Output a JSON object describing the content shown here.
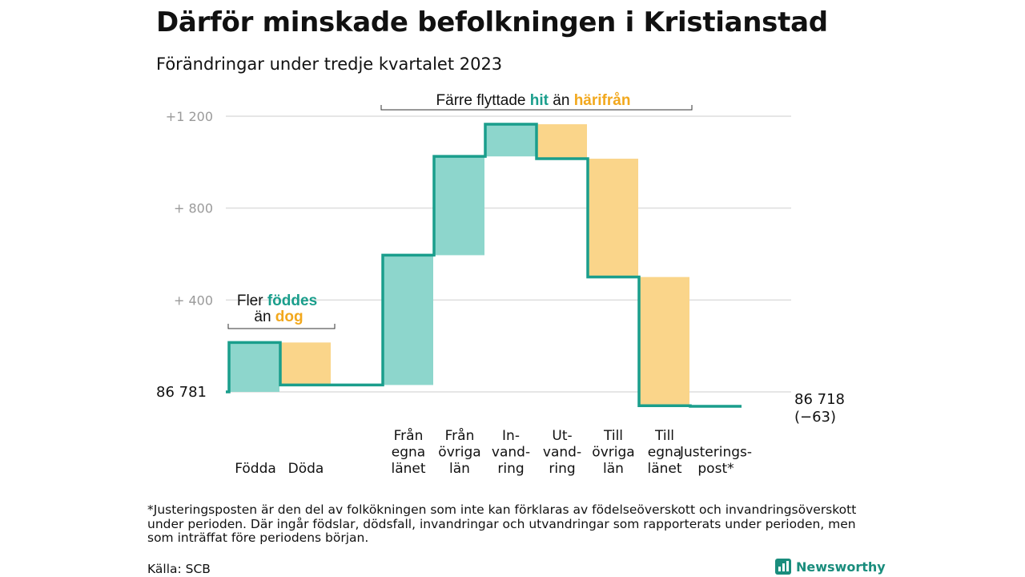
{
  "title": "Därför minskade befolkningen i Kristianstad",
  "subtitle": "Förändringar under tredje kvartalet 2023",
  "colors": {
    "increase": "#8dd6cc",
    "decrease": "#fad58a",
    "line": "#1a9e8c",
    "hit": "#1a9e8c",
    "harifran": "#f2a81d",
    "grid": "#dddddd"
  },
  "annotations": {
    "births": {
      "line1_prefix": "Fler ",
      "line1_hl": "föddes",
      "line2_prefix": "än ",
      "line2_hl": "dog"
    },
    "moves": {
      "prefix": "Färre flyttade ",
      "hl1": "hit",
      "mid": " än ",
      "hl2": "härifrån"
    }
  },
  "chart_data": {
    "type": "waterfall",
    "title": "Därför minskade befolkningen i Kristianstad",
    "subtitle": "Förändringar under tredje kvartalet 2023",
    "start_value": 86781,
    "start_label": "86  781",
    "end_value": 86718,
    "end_label_line1": "86 718",
    "end_label_line2": "(−63)",
    "ylim": [
      0,
      1200
    ],
    "yticks": [
      {
        "value": 400,
        "label": "+  400"
      },
      {
        "value": 800,
        "label": "+  800"
      },
      {
        "value": 1200,
        "label": "+1  200"
      }
    ],
    "categories": [
      {
        "lines": [
          "Födda"
        ],
        "delta": 215
      },
      {
        "lines": [
          "Döda"
        ],
        "delta": -185
      },
      {
        "lines": [],
        "delta": 0
      },
      {
        "lines": [
          "Från",
          "egna",
          "länet"
        ],
        "delta": 565
      },
      {
        "lines": [
          "Från",
          "övriga",
          "län"
        ],
        "delta": 430
      },
      {
        "lines": [
          "In-",
          "vand-",
          "ring"
        ],
        "delta": 140
      },
      {
        "lines": [
          "Ut-",
          "vand-",
          "ring"
        ],
        "delta": -150
      },
      {
        "lines": [
          "Till",
          "övriga",
          "län"
        ],
        "delta": -515
      },
      {
        "lines": [
          "Till",
          "egna",
          "länet"
        ],
        "delta": -560
      },
      {
        "lines": [
          "Justerings-",
          "post*"
        ],
        "delta": -3
      }
    ]
  },
  "footnote": "*Justeringsposten är den del av folkökningen som inte kan förklaras av födelseöverskott och invandringsöverskott under perioden. Där ingår födslar, dödsfall, invandringar och utvandringar som rapporterats under perioden, men som inträffat före periodens början.",
  "source": "Källa: SCB",
  "brand": {
    "name": "Newsworthy",
    "icon": "newsworthy-logo-icon"
  }
}
